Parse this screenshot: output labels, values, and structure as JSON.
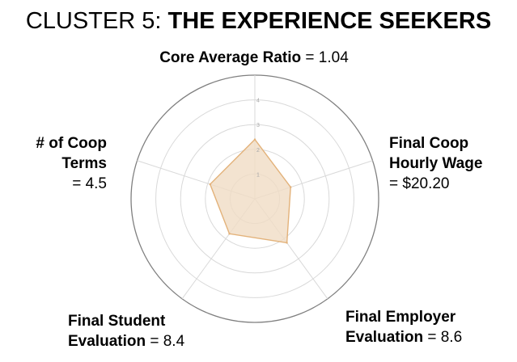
{
  "title": {
    "prefix": "CLUSTER 5: ",
    "name": "THE EXPERIENCE SEEKERS"
  },
  "labels": {
    "core_ratio": {
      "name": "Core Average Ratio",
      "value_text": " = 1.04"
    },
    "wage": {
      "name_line1": "Final Coop",
      "name_line2": "Hourly Wage",
      "value_text": "= $20.20"
    },
    "employer_eval": {
      "name": "Final Employer",
      "name_line2": "Evaluation",
      "value_text": " = 8.6"
    },
    "student_eval": {
      "name": "Final Student",
      "name_line2": "Evaluation",
      "value_text": " = 8.4"
    },
    "coop_terms": {
      "name_line1": "# of Coop",
      "name_line2": "Terms",
      "value_text": "= 4.5"
    }
  },
  "chart_data": {
    "type": "radar",
    "axes": [
      "Core Average Ratio",
      "Final Coop Hourly Wage",
      "Final Employer Evaluation",
      "Final Student Evaluation",
      "# of Coop Terms"
    ],
    "values": [
      2.4,
      1.52,
      2.2,
      1.75,
      1.9
    ],
    "rlim": [
      0,
      5
    ],
    "ticks": [
      1,
      2,
      3,
      4
    ],
    "tick_labels": [
      "1",
      "2",
      "3",
      "4"
    ],
    "grid": true,
    "fill_color": "#f0dcc4",
    "stroke_color": "#e3b27a",
    "grid_color": "#d9d9d9",
    "outer_color": "#7f7f7f"
  }
}
